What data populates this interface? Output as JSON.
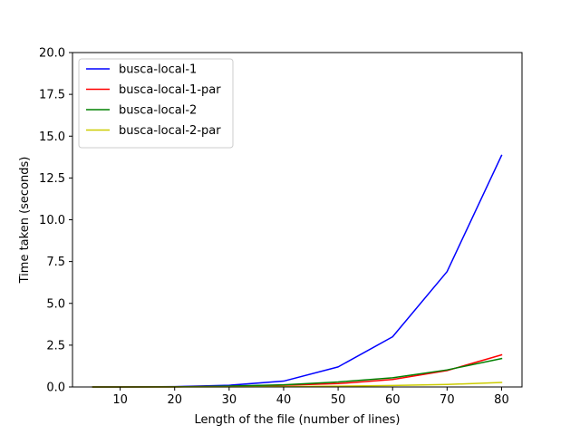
{
  "chart_data": {
    "type": "line",
    "title": "",
    "xlabel": "Length of the file (number of lines)",
    "ylabel": "Time taken (seconds)",
    "xlim": [
      1.25,
      83.75
    ],
    "ylim": [
      0,
      20
    ],
    "xticks": [
      10,
      20,
      30,
      40,
      50,
      60,
      70,
      80
    ],
    "xtick_labels": [
      "10",
      "20",
      "30",
      "40",
      "50",
      "60",
      "70",
      "80"
    ],
    "yticks": [
      0,
      2.5,
      5,
      7.5,
      10,
      12.5,
      15,
      17.5,
      20
    ],
    "ytick_labels": [
      "0.0",
      "2.5",
      "5.0",
      "7.5",
      "10.0",
      "12.5",
      "15.0",
      "17.5",
      "20.0"
    ],
    "grid": false,
    "legend_position": "top-left",
    "x": [
      5,
      10,
      20,
      30,
      40,
      50,
      60,
      70,
      80
    ],
    "series": [
      {
        "name": "busca-local-1",
        "color": "#0000ff",
        "values": [
          0.0,
          0.0,
          0.02,
          0.1,
          0.35,
          1.2,
          3.0,
          6.9,
          13.85
        ]
      },
      {
        "name": "busca-local-1-par",
        "color": "#ff0000",
        "values": [
          0.0,
          0.0,
          0.01,
          0.04,
          0.1,
          0.2,
          0.45,
          0.98,
          1.92
        ]
      },
      {
        "name": "busca-local-2",
        "color": "#008000",
        "values": [
          0.0,
          0.0,
          0.01,
          0.05,
          0.13,
          0.3,
          0.55,
          1.02,
          1.7
        ]
      },
      {
        "name": "busca-local-2-par",
        "color": "#cccc00",
        "values": [
          0.0,
          0.0,
          0.0,
          0.01,
          0.02,
          0.05,
          0.09,
          0.15,
          0.27
        ]
      }
    ]
  }
}
